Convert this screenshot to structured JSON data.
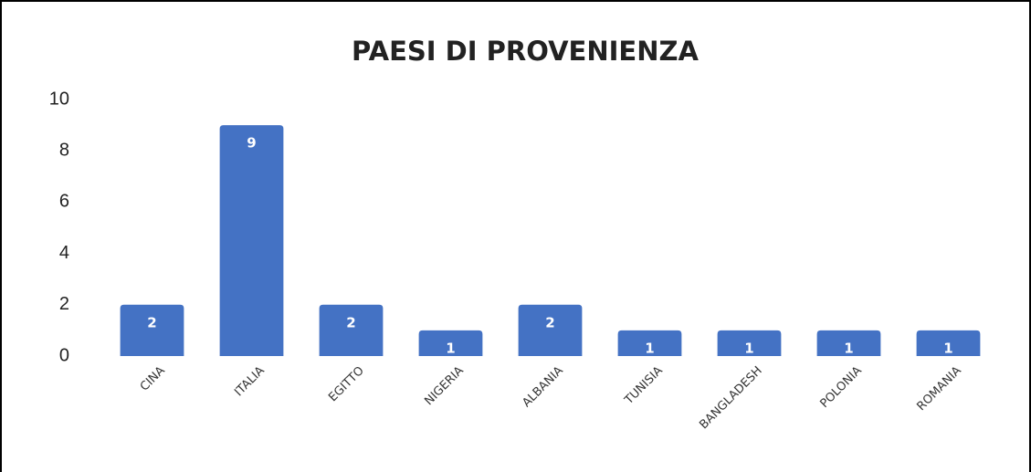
{
  "chart_data": {
    "type": "bar",
    "title": "PAESI DI PROVENIENZA",
    "categories": [
      "CINA",
      "ITALIA",
      "EGITTO",
      "NIGERIA",
      "ALBANIA",
      "TUNISIA",
      "BANGLADESH",
      "POLONIA",
      "ROMANIA"
    ],
    "values": [
      2,
      9,
      2,
      1,
      2,
      1,
      1,
      1,
      1
    ],
    "color": "#4472c4",
    "ylim": [
      0,
      10
    ],
    "yticks": [
      0,
      2,
      4,
      6,
      8,
      10
    ],
    "grid": false,
    "data_labels": true
  }
}
